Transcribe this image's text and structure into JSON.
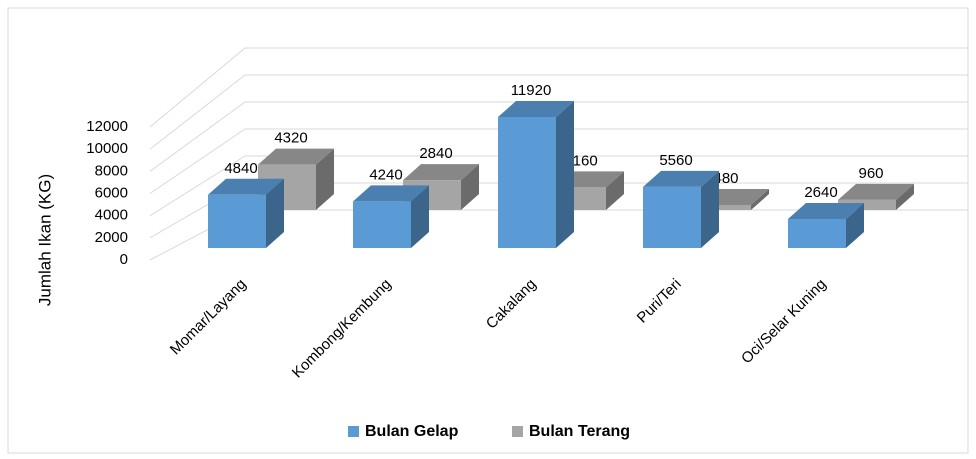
{
  "chart_data": {
    "type": "bar3d",
    "y_label": "Jumlah Ikan  (KG)",
    "categories": [
      "Momar/Layang",
      "Kombong/Kembung",
      "Cakalang",
      "Puri/Teri",
      "Oci/Selar Kuning"
    ],
    "series": [
      {
        "name": "Bulan Gelap",
        "color": "#5b9bd5",
        "values": [
          4840,
          4240,
          11920,
          5560,
          2640
        ]
      },
      {
        "name": "Bulan Terang",
        "color": "#a5a5a5",
        "values": [
          4320,
          2840,
          2160,
          480,
          960
        ]
      }
    ],
    "ylim": [
      0,
      12000
    ],
    "yticks": [
      0,
      2000,
      4000,
      6000,
      8000,
      10000,
      12000
    ],
    "grid": true,
    "legend": "bottom"
  }
}
